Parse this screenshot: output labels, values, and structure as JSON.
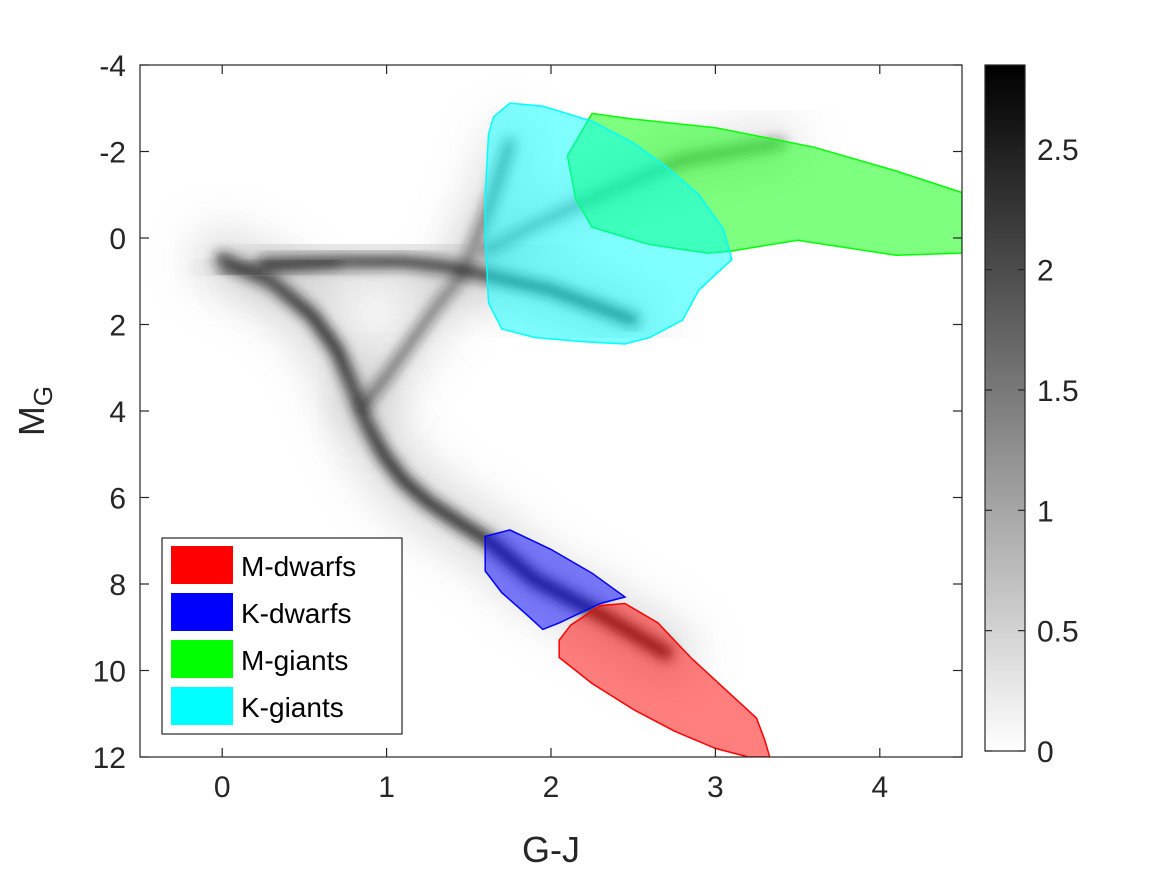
{
  "chart_data": {
    "type": "scatter",
    "title": "",
    "xlabel": "G-J",
    "ylabel": "M",
    "ylabel_subscript": "G",
    "xlim": [
      -0.5,
      4.5
    ],
    "ylim": [
      12,
      -4
    ],
    "x_ticks": [
      0,
      1,
      2,
      3,
      4
    ],
    "y_ticks": [
      -4,
      -2,
      0,
      2,
      4,
      6,
      8,
      10,
      12
    ],
    "x_tick_labels": [
      "0",
      "1",
      "2",
      "3",
      "4"
    ],
    "y_tick_labels": [
      "-4",
      "-2",
      "0",
      "2",
      "4",
      "6",
      "8",
      "10",
      "12"
    ],
    "colorbar": {
      "min": 0,
      "max": 2.85,
      "ticks": [
        0,
        0.5,
        1,
        1.5,
        2,
        2.5
      ],
      "tick_labels": [
        "0",
        "0.5",
        "1",
        "1.5",
        "2",
        "2.5"
      ],
      "colormap": "gray-reversed"
    },
    "density_ridges": [
      {
        "name": "main-sequence",
        "points": [
          [
            0.0,
            0.5
          ],
          [
            0.3,
            1.0
          ],
          [
            0.55,
            1.8
          ],
          [
            0.7,
            2.6
          ],
          [
            0.8,
            3.5
          ],
          [
            0.88,
            4.3
          ],
          [
            0.98,
            5.0
          ],
          [
            1.1,
            5.6
          ],
          [
            1.25,
            6.1
          ],
          [
            1.45,
            6.6
          ],
          [
            1.62,
            7.0
          ],
          [
            1.9,
            7.9
          ],
          [
            2.3,
            8.7
          ],
          [
            2.7,
            9.6
          ]
        ],
        "weight": 2.6
      },
      {
        "name": "turnoff-subgiant",
        "points": [
          [
            0.85,
            3.9
          ],
          [
            1.0,
            3.2
          ],
          [
            1.15,
            2.4
          ],
          [
            1.3,
            1.6
          ],
          [
            1.45,
            0.9
          ],
          [
            1.55,
            0.0
          ],
          [
            1.65,
            -1.0
          ],
          [
            1.75,
            -2.2
          ]
        ],
        "weight": 1.5
      },
      {
        "name": "red-clump",
        "points": [
          [
            0.25,
            0.6
          ],
          [
            0.7,
            0.55
          ],
          [
            1.1,
            0.55
          ],
          [
            1.35,
            0.65
          ],
          [
            1.6,
            0.85
          ],
          [
            2.0,
            1.2
          ],
          [
            2.5,
            1.9
          ]
        ],
        "weight": 2.2
      },
      {
        "name": "horizontal-branch",
        "points": [
          [
            0.0,
            0.8
          ],
          [
            0.35,
            0.65
          ],
          [
            0.7,
            0.55
          ]
        ],
        "weight": 1.0
      },
      {
        "name": "giant-branch",
        "points": [
          [
            1.6,
            0.3
          ],
          [
            1.9,
            -0.3
          ],
          [
            2.3,
            -1.0
          ],
          [
            2.8,
            -1.8
          ],
          [
            3.4,
            -2.2
          ]
        ],
        "weight": 1.2
      }
    ],
    "regions": [
      {
        "name": "M-dwarfs",
        "color": "#ff0000",
        "opacity": 0.5,
        "polygon": [
          [
            2.05,
            9.3
          ],
          [
            2.12,
            8.95
          ],
          [
            2.3,
            8.5
          ],
          [
            2.45,
            8.45
          ],
          [
            2.65,
            8.9
          ],
          [
            2.85,
            9.7
          ],
          [
            3.05,
            10.4
          ],
          [
            3.25,
            11.1
          ],
          [
            3.3,
            11.6
          ],
          [
            3.33,
            12.0
          ],
          [
            3.2,
            12.0
          ],
          [
            3.0,
            11.8
          ],
          [
            2.75,
            11.4
          ],
          [
            2.5,
            10.9
          ],
          [
            2.25,
            10.3
          ],
          [
            2.05,
            9.7
          ]
        ]
      },
      {
        "name": "K-dwarfs",
        "color": "#0000ff",
        "opacity": 0.5,
        "polygon": [
          [
            1.6,
            6.9
          ],
          [
            1.75,
            6.75
          ],
          [
            2.0,
            7.2
          ],
          [
            2.25,
            7.75
          ],
          [
            2.45,
            8.3
          ],
          [
            2.3,
            8.45
          ],
          [
            2.05,
            8.9
          ],
          [
            1.95,
            9.05
          ],
          [
            1.85,
            8.7
          ],
          [
            1.7,
            8.2
          ],
          [
            1.6,
            7.7
          ]
        ]
      },
      {
        "name": "M-giants",
        "color": "#00ff00",
        "opacity": 0.5,
        "polygon": [
          [
            2.1,
            -1.9
          ],
          [
            2.25,
            -2.88
          ],
          [
            2.5,
            -2.75
          ],
          [
            3.0,
            -2.55
          ],
          [
            3.6,
            -2.1
          ],
          [
            4.1,
            -1.55
          ],
          [
            4.5,
            -1.05
          ],
          [
            4.5,
            0.35
          ],
          [
            4.1,
            0.4
          ],
          [
            3.5,
            0.05
          ],
          [
            3.1,
            0.3
          ],
          [
            2.95,
            0.35
          ],
          [
            2.6,
            0.15
          ],
          [
            2.25,
            -0.25
          ],
          [
            2.15,
            -0.9
          ]
        ]
      },
      {
        "name": "K-giants",
        "color": "#00ffff",
        "opacity": 0.5,
        "polygon": [
          [
            1.62,
            -2.4
          ],
          [
            1.65,
            -2.8
          ],
          [
            1.75,
            -3.12
          ],
          [
            1.95,
            -3.05
          ],
          [
            2.25,
            -2.7
          ],
          [
            2.5,
            -2.2
          ],
          [
            2.7,
            -1.65
          ],
          [
            2.9,
            -1.0
          ],
          [
            3.05,
            -0.2
          ],
          [
            3.1,
            0.5
          ],
          [
            2.9,
            1.2
          ],
          [
            2.8,
            1.9
          ],
          [
            2.6,
            2.3
          ],
          [
            2.45,
            2.45
          ],
          [
            2.2,
            2.4
          ],
          [
            1.9,
            2.3
          ],
          [
            1.7,
            2.1
          ],
          [
            1.62,
            1.5
          ],
          [
            1.6,
            0.0
          ],
          [
            1.6,
            -1.0
          ]
        ]
      }
    ],
    "legend": {
      "location": "bottom-left",
      "entries": [
        {
          "label": "M-dwarfs",
          "color": "#ff0000"
        },
        {
          "label": "K-dwarfs",
          "color": "#0000ff"
        },
        {
          "label": "M-giants",
          "color": "#00ff00"
        },
        {
          "label": "K-giants",
          "color": "#00ffff"
        }
      ]
    }
  }
}
